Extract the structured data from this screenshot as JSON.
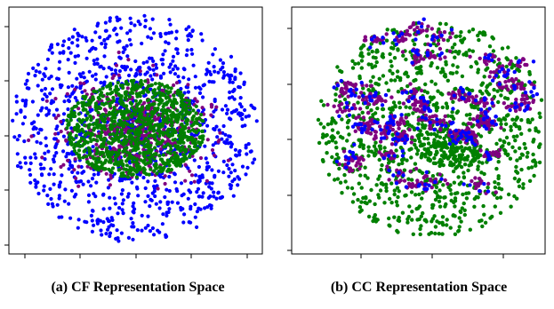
{
  "captions": {
    "a": "(a) CF Representation Space",
    "b": "(b) CC Representation Space"
  },
  "chart_data": [
    {
      "type": "scatter",
      "title": "(a) CF Representation Space",
      "xlabel": "",
      "ylabel": "",
      "tick_labels": "none",
      "grid": false,
      "legend": "none",
      "series": [
        {
          "color": "#0000ff",
          "point_count_approx": 1100,
          "distribution": "wide ring around the center, spanning the whole panel"
        },
        {
          "color": "#800080",
          "point_count_approx": 500,
          "distribution": "dense ellipse in the center"
        },
        {
          "color": "#008000",
          "point_count_approx": 1000,
          "distribution": "dense ellipse in the center, drawn on top"
        }
      ]
    },
    {
      "type": "scatter",
      "title": "(b) CC Representation Space",
      "xlabel": "",
      "ylabel": "",
      "tick_labels": "none",
      "grid": false,
      "legend": "none",
      "series": [
        {
          "color": "#008000",
          "point_count_approx": 1000,
          "distribution": "spread over the whole disc, with two dense hubs near the center"
        },
        {
          "color": "#800080",
          "point_count_approx": 700,
          "distribution": "many small tight clusters, concentrated in the upper half"
        },
        {
          "color": "#0000ff",
          "point_count_approx": 250,
          "distribution": "sparse, intermixed with the purple clusters"
        }
      ]
    }
  ]
}
